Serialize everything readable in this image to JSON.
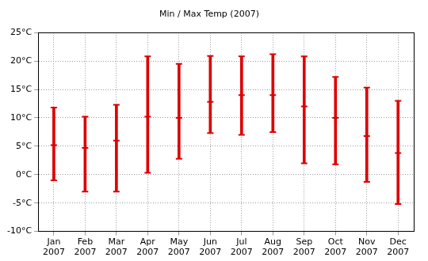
{
  "chart_data": {
    "type": "range",
    "title": "Min / Max Temp (2007)",
    "categories": [
      "Jan 2007",
      "Feb 2007",
      "Mar 2007",
      "Apr 2007",
      "May 2007",
      "Jun 2007",
      "Jul 2007",
      "Aug 2007",
      "Sep 2007",
      "Oct 2007",
      "Nov 2007",
      "Dec 2007"
    ],
    "values": [
      5.2,
      4.7,
      6.0,
      10.2,
      10.0,
      12.8,
      14.0,
      14.0,
      12.0,
      10.0,
      6.8,
      3.8
    ],
    "min": [
      -1.0,
      -3.0,
      -3.0,
      0.3,
      2.8,
      7.3,
      7.0,
      7.5,
      2.0,
      1.8,
      -1.3,
      -5.2
    ],
    "max": [
      11.8,
      10.2,
      12.3,
      20.8,
      19.5,
      20.9,
      20.8,
      21.2,
      20.8,
      17.2,
      15.3,
      13.0
    ],
    "color": "#dd0000",
    "ylim": [
      -10,
      25
    ],
    "yticks": [
      {
        "value": -10,
        "label": "-10°C"
      },
      {
        "value": -5,
        "label": "-5°C"
      },
      {
        "value": 0,
        "label": "0°C"
      },
      {
        "value": 5,
        "label": "5°C"
      },
      {
        "value": 10,
        "label": "10°C"
      },
      {
        "value": 15,
        "label": "15°C"
      },
      {
        "value": 20,
        "label": "20°C"
      },
      {
        "value": 25,
        "label": "25°C"
      }
    ],
    "grid": true
  }
}
